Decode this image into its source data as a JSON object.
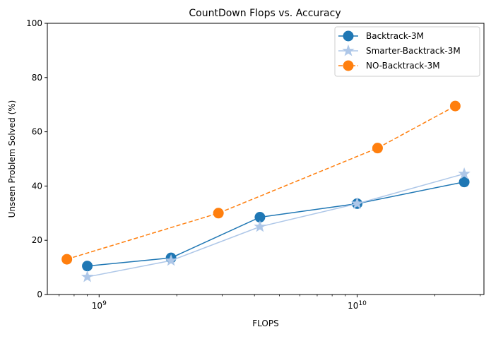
{
  "chart_data": {
    "type": "line",
    "title": "CountDown Flops vs. Accuracy",
    "xlabel": "FLOPS",
    "ylabel": "Unseen Problem Solved (%)",
    "x_scale": "log",
    "xlim": [
      630000000.0,
      31000000000.0
    ],
    "ylim": [
      0,
      100
    ],
    "x_major_ticks": [
      {
        "value": 1000000000.0,
        "base": "10",
        "exp": "9"
      },
      {
        "value": 10000000000.0,
        "base": "10",
        "exp": "10"
      }
    ],
    "y_ticks": [
      {
        "value": 0,
        "label": "0"
      },
      {
        "value": 20,
        "label": "20"
      },
      {
        "value": 40,
        "label": "40"
      },
      {
        "value": 60,
        "label": "60"
      },
      {
        "value": 80,
        "label": "80"
      },
      {
        "value": 100,
        "label": "100"
      }
    ],
    "grid": false,
    "legend_position": "upper right",
    "series": [
      {
        "name": "Backtrack-3M",
        "color": "#1f77b4",
        "marker": "circle",
        "linestyle": "solid",
        "x": [
          900000000.0,
          1900000000.0,
          4200000000.0,
          10000000000.0,
          26000000000.0
        ],
        "y": [
          10.5,
          13.5,
          28.5,
          33.5,
          41.5
        ]
      },
      {
        "name": "Smarter-Backtrack-3M",
        "color": "#aec7e8",
        "marker": "star",
        "linestyle": "solid",
        "x": [
          900000000.0,
          1900000000.0,
          4200000000.0,
          10000000000.0,
          26000000000.0
        ],
        "y": [
          6.5,
          12.5,
          25.0,
          33.5,
          44.5
        ]
      },
      {
        "name": "NO-Backtrack-3M",
        "color": "#ff7f0e",
        "marker": "circle",
        "linestyle": "dashed",
        "x": [
          750000000.0,
          2900000000.0,
          12000000000.0,
          24000000000.0
        ],
        "y": [
          13.0,
          30.0,
          54.0,
          69.5
        ]
      }
    ]
  }
}
